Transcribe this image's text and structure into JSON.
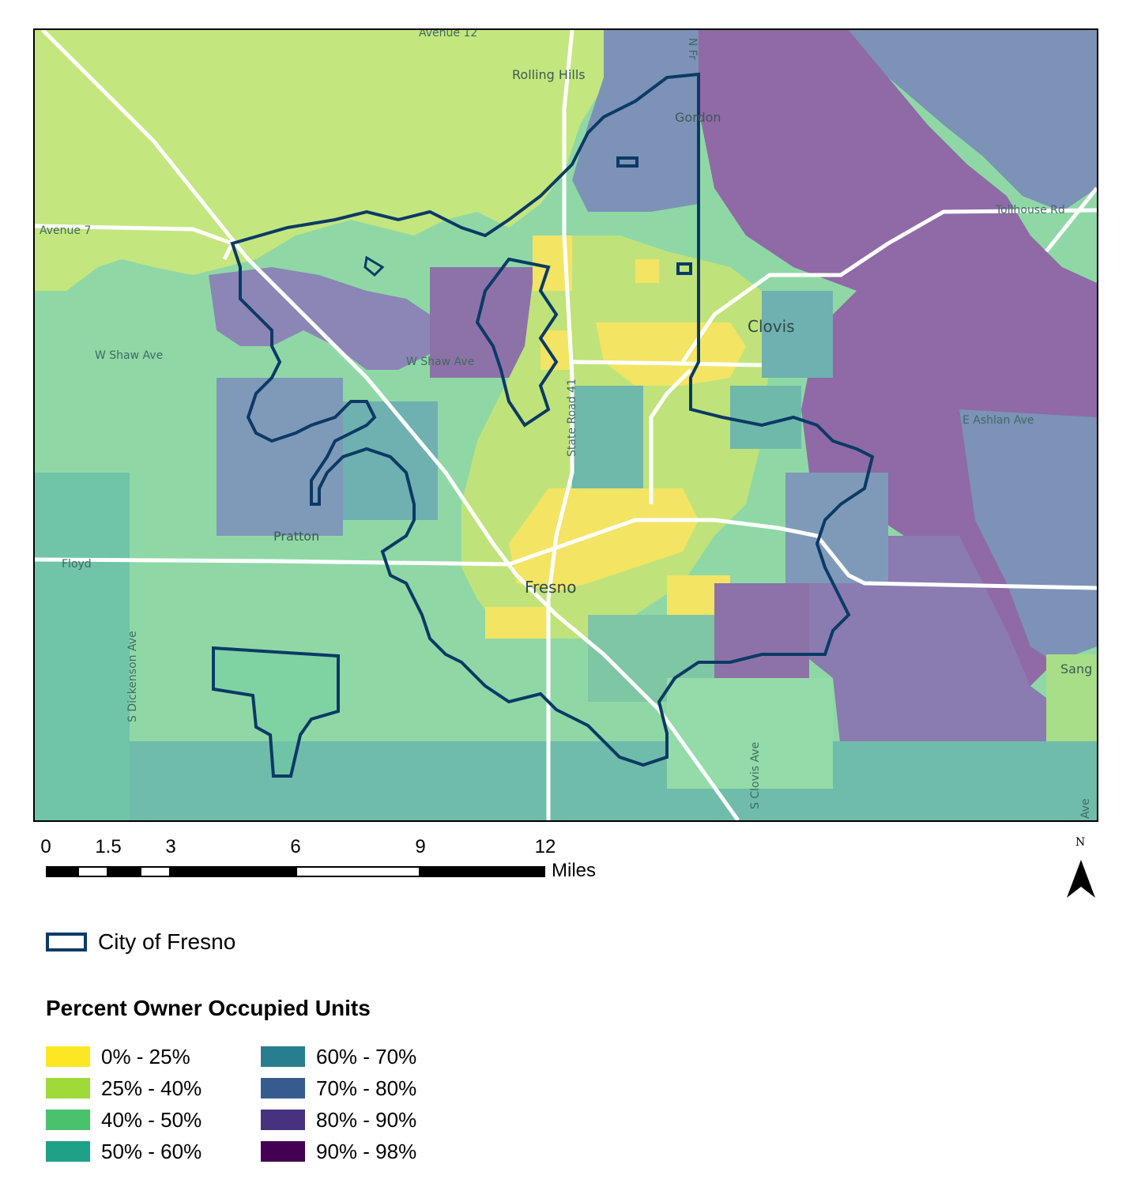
{
  "map": {
    "place_labels": [
      "Rolling Hills",
      "Gordon",
      "Clovis",
      "Pratton",
      "Fresno",
      "Sang",
      "Avenue 12",
      "Avenue 7",
      "Tollhouse Rd",
      "W Shaw Ave",
      "E Ashlan Ave",
      "Floyd",
      "S Dickenson Ave",
      "S Clovis Ave",
      "Ave",
      "N Fr",
      "State Road 41",
      "Fresno"
    ],
    "colors": {
      "class_0_25": "#fde725",
      "class_25_40": "#a0da39",
      "class_40_50": "#4ac16d",
      "class_50_60": "#1fa187",
      "class_60_70": "#277f8e",
      "class_70_80": "#365c8d",
      "class_80_90": "#46327e",
      "class_90_98": "#440154",
      "boundary": "#0b3a66",
      "roads": "#ffffff"
    }
  },
  "scale_bar": {
    "ticks": [
      "0",
      "1.5",
      "3",
      "6",
      "9",
      "12"
    ],
    "unit": "Miles"
  },
  "north_arrow": {
    "letter": "N"
  },
  "legend": {
    "boundary_label": "City of Fresno",
    "title": "Percent Owner Occupied Units",
    "classes": [
      {
        "label": "0% - 25%",
        "color": "#fde725"
      },
      {
        "label": "25% - 40%",
        "color": "#a0da39"
      },
      {
        "label": "40% - 50%",
        "color": "#4ac16d"
      },
      {
        "label": "50% - 60%",
        "color": "#1fa187"
      },
      {
        "label": "60% - 70%",
        "color": "#277f8e"
      },
      {
        "label": "70% - 80%",
        "color": "#365c8d"
      },
      {
        "label": "80% - 90%",
        "color": "#46327e"
      },
      {
        "label": "90% - 98%",
        "color": "#440154"
      }
    ]
  }
}
